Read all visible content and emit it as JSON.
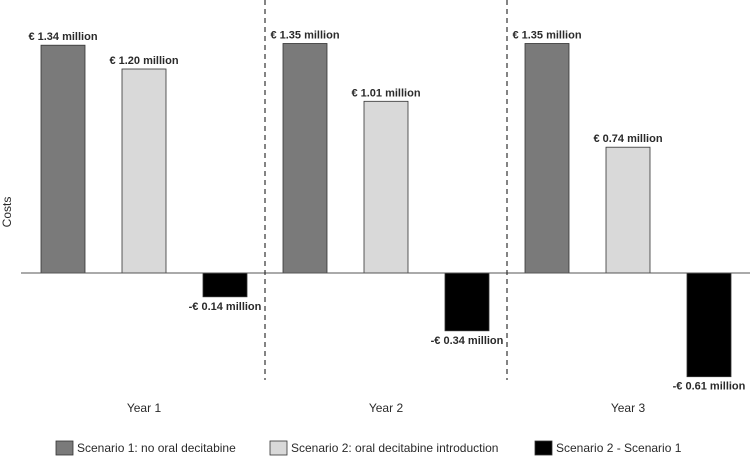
{
  "chart_data": {
    "type": "bar",
    "title": "",
    "xlabel": "",
    "ylabel": "Costs",
    "ylim": [
      -0.8,
      1.4
    ],
    "categories": [
      "Year 1",
      "Year 2",
      "Year 3"
    ],
    "series": [
      {
        "name": "Scenario 1: no oral decitabine",
        "color": "#7a7a7a",
        "values": [
          1.34,
          1.35,
          1.35
        ],
        "labels": [
          "€ 1.34 million",
          "€ 1.35 million",
          "€ 1.35 million"
        ]
      },
      {
        "name": "Scenario 2: oral decitabine introduction",
        "color": "#d9d9d9",
        "values": [
          1.2,
          1.01,
          0.74
        ],
        "labels": [
          "€ 1.20 million",
          "€ 1.01 million",
          "€ 0.74 million"
        ]
      },
      {
        "name": "Scenario 2 - Scenario 1",
        "color": "#000000",
        "values": [
          -0.14,
          -0.34,
          -0.61
        ],
        "labels": [
          "-€ 0.14 million",
          "-€ 0.34 million",
          "-€ 0.61 million"
        ]
      }
    ],
    "grid": false,
    "legend_position": "bottom",
    "group_separators": "dashed"
  }
}
